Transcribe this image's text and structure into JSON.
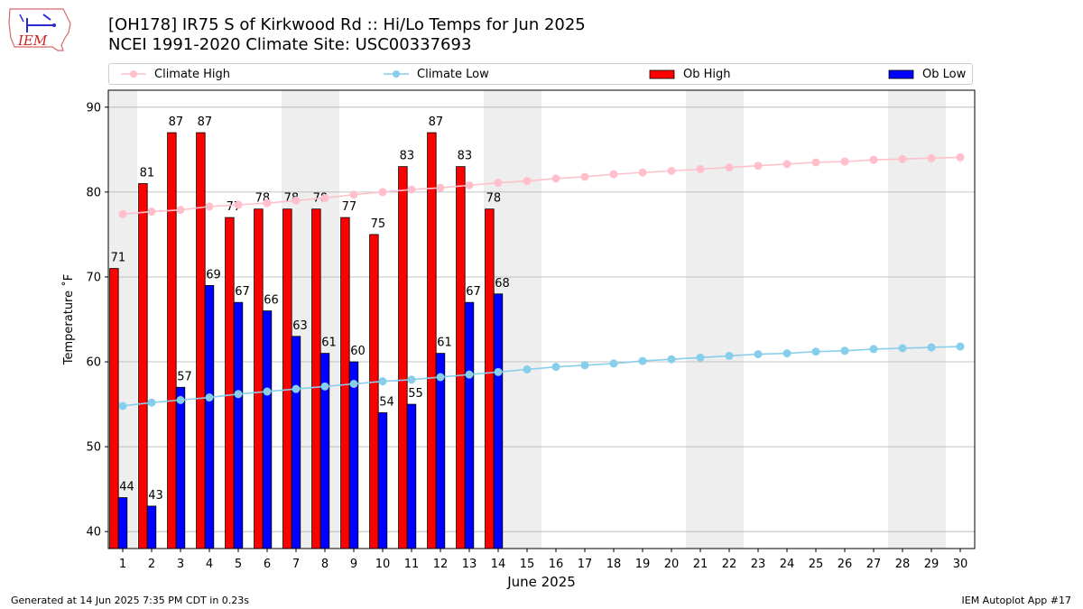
{
  "header": {
    "title_line1": "[OH178] IR75 S of Kirkwood Rd :: Hi/Lo Temps for Jun 2025",
    "title_line2": "NCEI 1991-2020 Climate Site: USC00337693"
  },
  "logo": {
    "text": "IEM"
  },
  "legend": {
    "climate_high": "Climate High",
    "climate_low": "Climate Low",
    "ob_high": "Ob High",
    "ob_low": "Ob Low"
  },
  "footer": {
    "left": "Generated at 14 Jun 2025 7:35 PM CDT in 0.23s",
    "right": "IEM Autoplot App #17"
  },
  "colors": {
    "ob_high": "#ff0000",
    "ob_low": "#0000ff",
    "climate_high": "#ffc0cb",
    "climate_low": "#87ceeb",
    "weekend_shade": "#eeeeee"
  },
  "chart_data": {
    "type": "bar",
    "xlabel": "June 2025",
    "ylabel": "Temperature ˚F",
    "ylim": [
      38,
      92
    ],
    "yticks": [
      40,
      50,
      60,
      70,
      80,
      90
    ],
    "grid": "horizontal",
    "legend_position": "top",
    "days": [
      1,
      2,
      3,
      4,
      5,
      6,
      7,
      8,
      9,
      10,
      11,
      12,
      13,
      14,
      15,
      16,
      17,
      18,
      19,
      20,
      21,
      22,
      23,
      24,
      25,
      26,
      27,
      28,
      29,
      30
    ],
    "weekend_days": [
      1,
      7,
      8,
      14,
      15,
      21,
      22,
      28,
      29
    ],
    "series": [
      {
        "name": "Ob High",
        "kind": "bar",
        "values": [
          71,
          81,
          87,
          87,
          77,
          78,
          78,
          78,
          77,
          75,
          83,
          87,
          83,
          78
        ]
      },
      {
        "name": "Ob Low",
        "kind": "bar",
        "values": [
          44,
          43,
          57,
          69,
          67,
          66,
          63,
          61,
          60,
          54,
          55,
          61,
          67,
          68
        ]
      },
      {
        "name": "Climate High",
        "kind": "line",
        "values": [
          77.4,
          77.7,
          77.9,
          78.3,
          78.5,
          78.7,
          79.0,
          79.3,
          79.7,
          80.0,
          80.3,
          80.5,
          80.8,
          81.1,
          81.3,
          81.6,
          81.8,
          82.1,
          82.3,
          82.5,
          82.7,
          82.9,
          83.1,
          83.3,
          83.5,
          83.6,
          83.8,
          83.9,
          84.0,
          84.1
        ]
      },
      {
        "name": "Climate Low",
        "kind": "line",
        "values": [
          54.8,
          55.2,
          55.5,
          55.8,
          56.2,
          56.5,
          56.8,
          57.1,
          57.4,
          57.7,
          57.9,
          58.2,
          58.5,
          58.8,
          59.1,
          59.4,
          59.6,
          59.8,
          60.1,
          60.3,
          60.5,
          60.7,
          60.9,
          61.0,
          61.2,
          61.3,
          61.5,
          61.6,
          61.7,
          61.8
        ]
      }
    ]
  }
}
